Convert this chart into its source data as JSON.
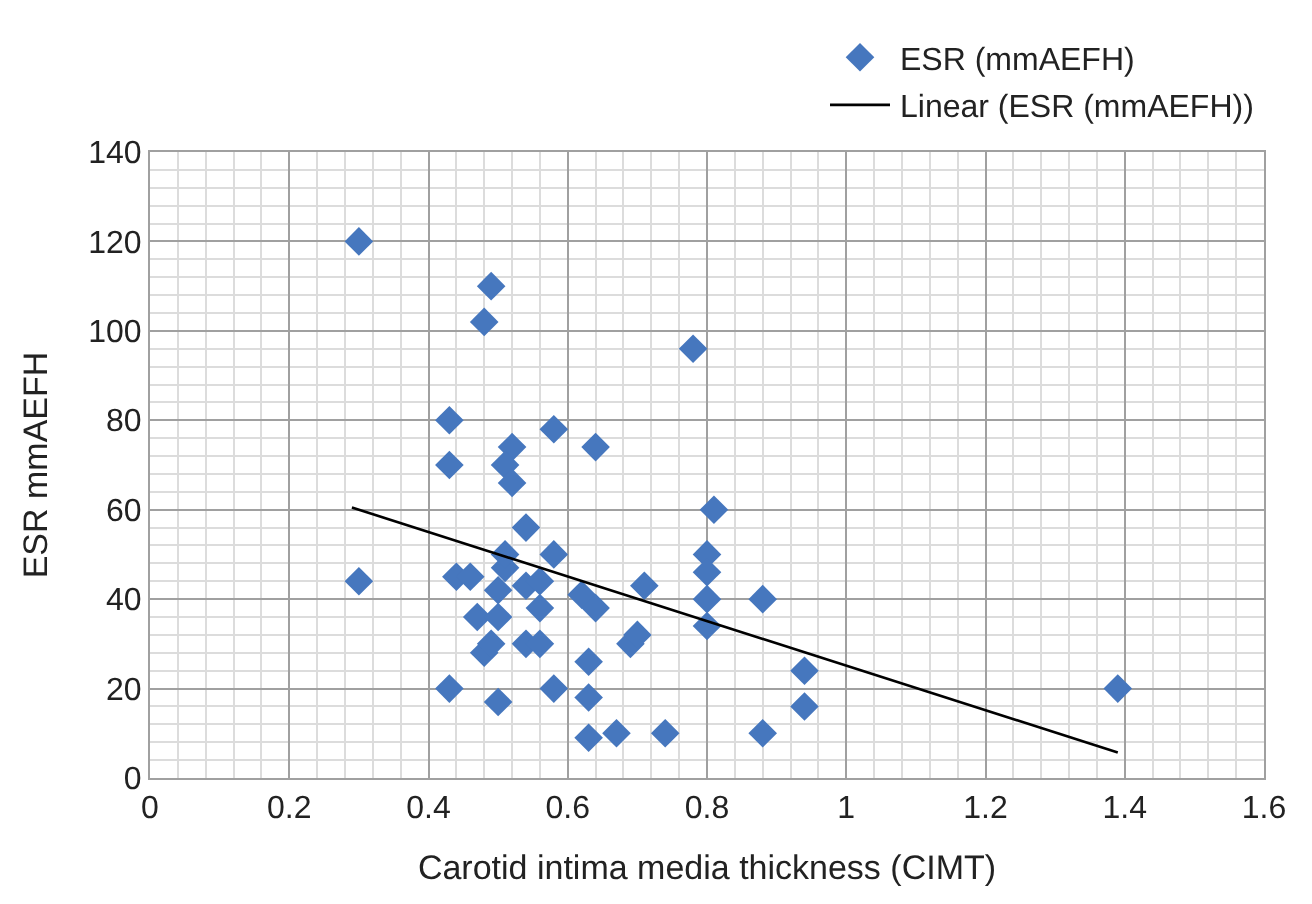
{
  "chart_data": {
    "type": "scatter",
    "xlabel": "Carotid intima media thickness (CIMT)",
    "ylabel": "ESR mmAEFH",
    "xlim": [
      0,
      1.6
    ],
    "xticks": [
      0,
      0.2,
      0.4,
      0.6,
      0.8,
      1,
      1.2,
      1.4,
      1.6
    ],
    "ylim": [
      0,
      140
    ],
    "yticks": [
      0,
      20,
      40,
      60,
      80,
      100,
      120,
      140
    ],
    "grid": true,
    "legend": "top right",
    "marker": "diamond",
    "series": [
      {
        "name": "ESR (mmAEFH)",
        "color": "#4677be",
        "x": [
          0.3,
          0.3,
          0.43,
          0.43,
          0.43,
          0.44,
          0.46,
          0.47,
          0.48,
          0.49,
          0.49,
          0.48,
          0.5,
          0.5,
          0.5,
          0.51,
          0.51,
          0.52,
          0.51,
          0.52,
          0.54,
          0.54,
          0.56,
          0.56,
          0.54,
          0.56,
          0.58,
          0.58,
          0.58,
          0.62,
          0.64,
          0.64,
          0.63,
          0.63,
          0.63,
          0.67,
          0.74,
          0.71,
          0.69,
          0.7,
          0.78,
          0.81,
          0.8,
          0.8,
          0.8,
          0.8,
          0.88,
          0.94,
          0.94,
          0.88,
          1.39
        ],
        "values": [
          120,
          44,
          80,
          70,
          20,
          45,
          45,
          36,
          28,
          30,
          110,
          102,
          42,
          36,
          17,
          47,
          50,
          74,
          70,
          66,
          56,
          43,
          44,
          38,
          30,
          30,
          50,
          20,
          78,
          41,
          38,
          74,
          26,
          18,
          9,
          10,
          10,
          43,
          30,
          32,
          96,
          60,
          50,
          46,
          40,
          34,
          40,
          24,
          16,
          10,
          20
        ]
      },
      {
        "name": "Linear (ESR (mmAEFH))",
        "type": "line",
        "color": "#000000",
        "marker": "none",
        "x": [
          0.29,
          1.39
        ],
        "values": [
          60.5,
          5.7
        ]
      }
    ]
  }
}
